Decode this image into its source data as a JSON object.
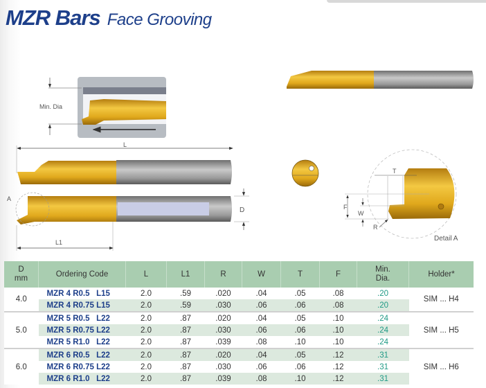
{
  "header": {
    "title": "MZR Bars",
    "subtitle": "Face Grooving"
  },
  "diagrams": {
    "min_dia_label": "Min. Dia",
    "length_label": "L",
    "length1_label": "L1",
    "diameter_label": "D",
    "detail_marker": "A",
    "detail": {
      "t": "T",
      "f": "F",
      "w": "W",
      "r": "R",
      "caption": "Detail A"
    }
  },
  "colors": {
    "title": "#1d3f8a",
    "header_bg": "#a9cdb0",
    "row_alt": "#dce9de",
    "min_dia": "#1f9a85",
    "carbide_gold": "#e0a81c"
  },
  "table": {
    "columns": [
      "D\nmm",
      "Ordering Code",
      "L",
      "L1",
      "R",
      "W",
      "T",
      "F",
      "Min.\nDia.",
      "Holder*"
    ],
    "groups": [
      {
        "d": "4.0",
        "holder": "SIM ... H4",
        "rows": [
          {
            "code": "MZR 4 R0.5   L15",
            "l": "2.0",
            "l1": ".59",
            "r": ".020",
            "w": ".04",
            "t": ".05",
            "f": ".08",
            "min": ".20"
          },
          {
            "code": "MZR 4 R0.75 L15",
            "l": "2.0",
            "l1": ".59",
            "r": ".030",
            "w": ".06",
            "t": ".06",
            "f": ".08",
            "min": ".20"
          }
        ]
      },
      {
        "d": "5.0",
        "holder": "SIM ... H5",
        "rows": [
          {
            "code": "MZR 5 R0.5   L22",
            "l": "2.0",
            "l1": ".87",
            "r": ".020",
            "w": ".04",
            "t": ".05",
            "f": ".10",
            "min": ".24"
          },
          {
            "code": "MZR 5 R0.75 L22",
            "l": "2.0",
            "l1": ".87",
            "r": ".030",
            "w": ".06",
            "t": ".06",
            "f": ".10",
            "min": ".24"
          },
          {
            "code": "MZR 5 R1.0   L22",
            "l": "2.0",
            "l1": ".87",
            "r": ".039",
            "w": ".08",
            "t": ".10",
            "f": ".10",
            "min": ".24"
          }
        ]
      },
      {
        "d": "6.0",
        "holder": "SIM ... H6",
        "rows": [
          {
            "code": "MZR 6 R0.5   L22",
            "l": "2.0",
            "l1": ".87",
            "r": ".020",
            "w": ".04",
            "t": ".05",
            "f": ".12",
            "min": ".31"
          },
          {
            "code": "MZR 6 R0.75 L22",
            "l": "2.0",
            "l1": ".87",
            "r": ".030",
            "w": ".06",
            "t": ".06",
            "f": ".12",
            "min": ".31"
          },
          {
            "code": "MZR 6 R1.0   L22",
            "l": "2.0",
            "l1": ".87",
            "r": ".039",
            "w": ".08",
            "t": ".10",
            "f": ".12",
            "min": ".31"
          }
        ]
      }
    ]
  }
}
